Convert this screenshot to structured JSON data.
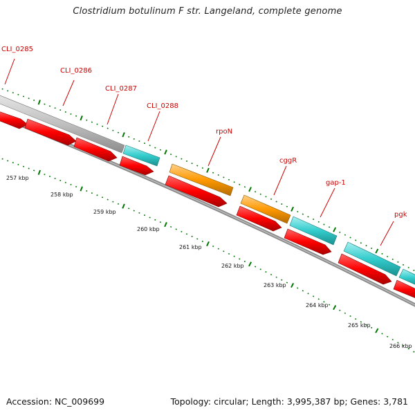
{
  "title": "Clostridium botulinum F str. Langeland, complete genome",
  "accession": "Accession: NC_009699",
  "summary": "Topology: circular; Length: 3,995,387 bp; Genes: 3,781",
  "genes": [
    "CLI_0285",
    "CLI_0286",
    "CLI_0287",
    "CLI_0288",
    "rpoN",
    "cggR",
    "gap-1",
    "pgk"
  ],
  "kbp_labels": [
    "257 kbp",
    "258 kbp",
    "259 kbp",
    "260 kbp",
    "261 kbp",
    "262 kbp",
    "263 kbp",
    "264 kbp",
    "265 kbp",
    "266 kbp"
  ],
  "colors": {
    "cds": "#ff0000",
    "gray_feature": "#c0c0c0",
    "cyan_feature": "#33cccc",
    "orange_feature": "#ff9900",
    "ticks": "#007700",
    "labels": "#cc0000"
  }
}
